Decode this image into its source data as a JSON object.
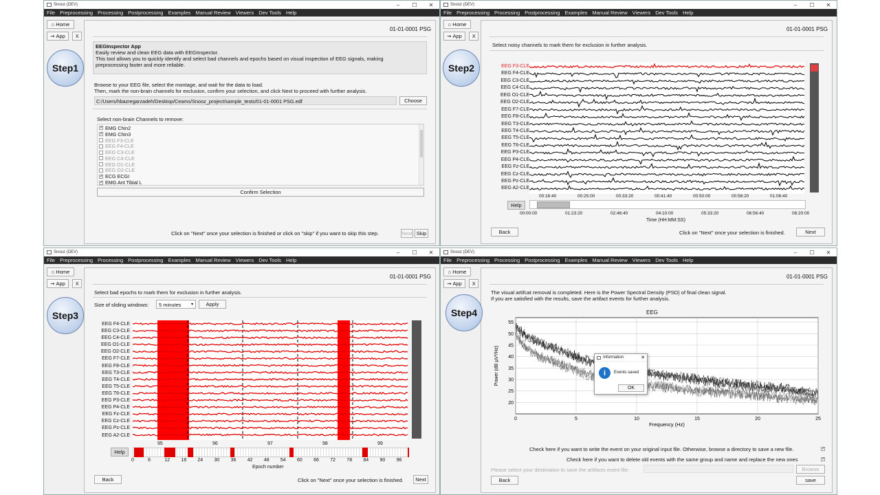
{
  "window_title": "Snooz (DEV)",
  "menu": [
    "File",
    "Preprocessing",
    "Processing",
    "Postprocessing",
    "Examples",
    "Manual Review",
    "Viewers",
    "Dev Tools",
    "Help"
  ],
  "side": {
    "home": "Home",
    "app": "App",
    "close": "X"
  },
  "file_id": "01-01-0001 PSG",
  "steps": [
    "Step1",
    "Step2",
    "Step3",
    "Step4"
  ],
  "step1": {
    "app_title": "EEGInspector App",
    "desc1": "Easily review and clean EEG data with EEGInspector.",
    "desc2": "This tool allows you to quickly identify and select bad channels and epochs based on visual inspection of EEG signals, making",
    "desc3": "preprocessing faster and more reliable.",
    "inst1": "Browse to your EEG file, select the montage, and wait for the data to load.",
    "inst2": "Then, mark the non-brain channels for exclusion, confirm your selection, and click Next to proceed with further analysis.",
    "file_path": "C:/Users/hbazregarzadeh/Desktop/Ceams/Snooz_project/sample_tests/01-01-0001 PSG.edf",
    "choose": "Choose",
    "select_label": "Select non-brain Channels to remove:",
    "channels": [
      {
        "name": "EMG Chin2",
        "checked": "✓"
      },
      {
        "name": "EMG Chin3",
        "checked": "✓"
      },
      {
        "name": "EEG F3-CLE",
        "checked": ""
      },
      {
        "name": "EEG F4-CLE",
        "checked": ""
      },
      {
        "name": "EEG C3-CLE",
        "checked": ""
      },
      {
        "name": "EEG C4-CLE",
        "checked": ""
      },
      {
        "name": "EEG O1-CLE",
        "checked": ""
      },
      {
        "name": "EEG O2-CLE",
        "checked": ""
      },
      {
        "name": "ECG ECGI",
        "checked": "✓"
      },
      {
        "name": "EMG Ant Tibial L",
        "checked": "✓"
      }
    ],
    "confirm": "Confirm Selection",
    "footer": "Click on \"Next\" once your selection is finished or click on \"skip\" if you want to skip this step.",
    "next": "Next",
    "skip": "Skip"
  },
  "step2": {
    "instruction": "Select noisy channels to mark them for exclusion in further analysis.",
    "channels": [
      "EEG F3-CLE",
      "EEG F4-CLE",
      "EEG C3-CLE",
      "EEG C4-CLE",
      "EEG O1-CLE",
      "EEG O2-CLE",
      "EEG F7-CLE",
      "EEG F8-CLE",
      "EEG T3-CLE",
      "EEG T4-CLE",
      "EEG T5-CLE",
      "EEG T6-CLE",
      "EEG P3-CLE",
      "EEG P4-CLE",
      "EEG Fz-CLE",
      "EEG Cz-CLE",
      "EEG Pz-CLE",
      "EEG A2-CLE"
    ],
    "top_ticks": [
      "00:16:40",
      "00:25:00",
      "00:33:20",
      "00:41:40",
      "00:50:00",
      "00:58:20",
      "01:06:40"
    ],
    "bottom_ticks": [
      "00:00:00",
      "01:23:20",
      "02:46:40",
      "04:10:00",
      "05:33:20",
      "06:56:40",
      "08:20:00"
    ],
    "xlabel": "Time (HH:MM:SS)",
    "help": "Help",
    "back": "Back",
    "footer": "Click on \"Next\" once your selection is finished.",
    "next": "Next"
  },
  "step3": {
    "instruction": "Select bad epochs to mark them for exclusion in further analysis.",
    "window_label": "Size of sliding windows:",
    "window_value": "5 minutes",
    "apply": "Apply",
    "channels": [
      "EEG F4-CLE",
      "EEG C3-CLE",
      "EEG C4-CLE",
      "EEG O1-CLE",
      "EEG O2-CLE",
      "EEG F7-CLE",
      "EEG F8-CLE",
      "EEG T3-CLE",
      "EEG T4-CLE",
      "EEG T5-CLE",
      "EEG T6-CLE",
      "EEG P3-CLE",
      "EEG P4-CLE",
      "EEG Fz-CLE",
      "EEG Cz-CLE",
      "EEG Pz-CLE",
      "EEG A2-CLE"
    ],
    "epoch_labels": [
      "95",
      "96",
      "97",
      "98",
      "99"
    ],
    "epoch_ticks": [
      "0",
      "6",
      "12",
      "18",
      "24",
      "30",
      "36",
      "42",
      "48",
      "54",
      "60",
      "66",
      "72",
      "78",
      "84",
      "90",
      "96"
    ],
    "xlabel": "Epoch number",
    "help": "Help",
    "back": "Back",
    "footer": "Click on \"Next\" once your selection is finished.",
    "next": "Next"
  },
  "step4": {
    "line1": "The visual artifcat removal is completed. Here is the Power Spectral Density (PSD) of final clean signal.",
    "line2": "If you are satisfied with the results, save the artifact events for further analysis.",
    "chart_title": "EEG",
    "ylabel": "Power (dB µV²/Hz)",
    "xlabel": "Frequency (Hz)",
    "dialog": {
      "title": "Information",
      "message": "Events saved",
      "ok": "OK"
    },
    "check1": "Check here if you want to write the event on your original input file. Otherwise, browse a directory to save a new file.",
    "check2": "Check here if you want to delete old events with the same group and name and replace the new ones",
    "dest_label": "Please select your destination to save the artifacts event file:",
    "browse": "Browse",
    "back": "Back",
    "save": "save"
  },
  "chart_data": {
    "type": "line",
    "title": "EEG",
    "xlabel": "Frequency (Hz)",
    "ylabel": "Power (dB µV²/Hz)",
    "xlim": [
      0,
      25
    ],
    "ylim": [
      15,
      57
    ],
    "x_ticks": [
      0,
      5,
      10,
      15,
      20,
      25
    ],
    "y_ticks": [
      20,
      25,
      30,
      35,
      40,
      45,
      50,
      55
    ],
    "series": [
      {
        "x": [
          0,
          1,
          2,
          3,
          4,
          5,
          6,
          8,
          10,
          12,
          15,
          18,
          20,
          22,
          25
        ],
        "values": [
          53,
          48,
          46,
          44,
          42,
          40,
          38,
          36,
          34,
          32,
          30,
          28,
          27,
          26,
          24
        ]
      },
      {
        "x": [
          0,
          1,
          2,
          3,
          4,
          5,
          6,
          8,
          10,
          12,
          15,
          18,
          20,
          22,
          25
        ],
        "values": [
          50,
          44,
          41,
          39,
          37,
          35,
          33,
          31,
          29,
          28,
          26,
          25,
          24,
          23,
          22
        ]
      }
    ]
  }
}
